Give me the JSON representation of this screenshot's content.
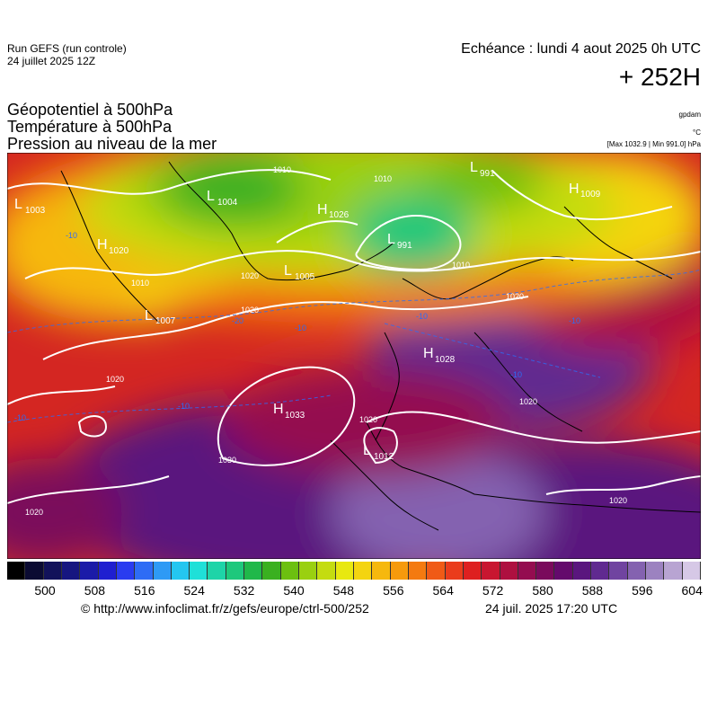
{
  "header": {
    "run": "Run GEFS (run controle)",
    "run_date": "24 juillet 2025 12Z",
    "echeance": "Echéance : lundi 4 aout 2025 0h UTC",
    "lead": "+ 252H"
  },
  "titles": {
    "line1": "Géopotentiel à 500hPa",
    "line2": "Température à 500hPa",
    "line3": "Pression au niveau de la mer"
  },
  "units": {
    "geopotential": "gpdam",
    "temperature": "°C",
    "pressure_range": "[Max 1032.9 | Min 991.0] hPa"
  },
  "colorbar": {
    "ticks": [
      "500",
      "508",
      "516",
      "524",
      "532",
      "540",
      "548",
      "556",
      "564",
      "572",
      "580",
      "588",
      "596",
      "604"
    ],
    "colors": [
      "#000000",
      "#0b0b32",
      "#12125a",
      "#161680",
      "#1b1ba8",
      "#1f1fd0",
      "#2a3cf0",
      "#2e6cf5",
      "#2e9af5",
      "#24c6f0",
      "#1fe0d8",
      "#1ed4a8",
      "#1ec87c",
      "#20b84a",
      "#3ab020",
      "#6cc010",
      "#9ad010",
      "#c4dc10",
      "#e8e810",
      "#f4d410",
      "#f6b80e",
      "#f69a0c",
      "#f47a10",
      "#f05a16",
      "#ea3c1c",
      "#de2020",
      "#c81630",
      "#ae1040",
      "#940c50",
      "#7a0a5c",
      "#640a6c",
      "#5a167e",
      "#602a90",
      "#7044a0",
      "#8462b0",
      "#9c82c0",
      "#b8a4d2",
      "#d6c8e6"
    ]
  },
  "map_labels": {
    "highs": [
      {
        "l": "H",
        "v": "1020"
      },
      {
        "l": "H",
        "v": "1026"
      },
      {
        "l": "H",
        "v": "1028"
      },
      {
        "l": "H",
        "v": "1033"
      },
      {
        "l": "H",
        "v": "1009"
      }
    ],
    "lows": [
      {
        "l": "L",
        "v": "1003"
      },
      {
        "l": "L",
        "v": "1004"
      },
      {
        "l": "L",
        "v": "1005"
      },
      {
        "l": "L",
        "v": "1007"
      },
      {
        "l": "L",
        "v": "991"
      },
      {
        "l": "L",
        "v": "991"
      },
      {
        "l": "L",
        "v": "1012"
      }
    ],
    "isobars": [
      "1020",
      "1010",
      "1020",
      "1030",
      "1020",
      "1020",
      "1020",
      "1010",
      "1010",
      "1020",
      "1020",
      "1010",
      "1020"
    ],
    "isotherms": [
      "-10",
      "-10",
      "-20",
      "-10",
      "-10",
      "-10",
      "-10",
      "-10"
    ]
  },
  "footer": {
    "url": "© http://www.infoclimat.fr/z/gefs/europe/ctrl-500/252",
    "generated": "24 juil. 2025 17:20 UTC"
  }
}
